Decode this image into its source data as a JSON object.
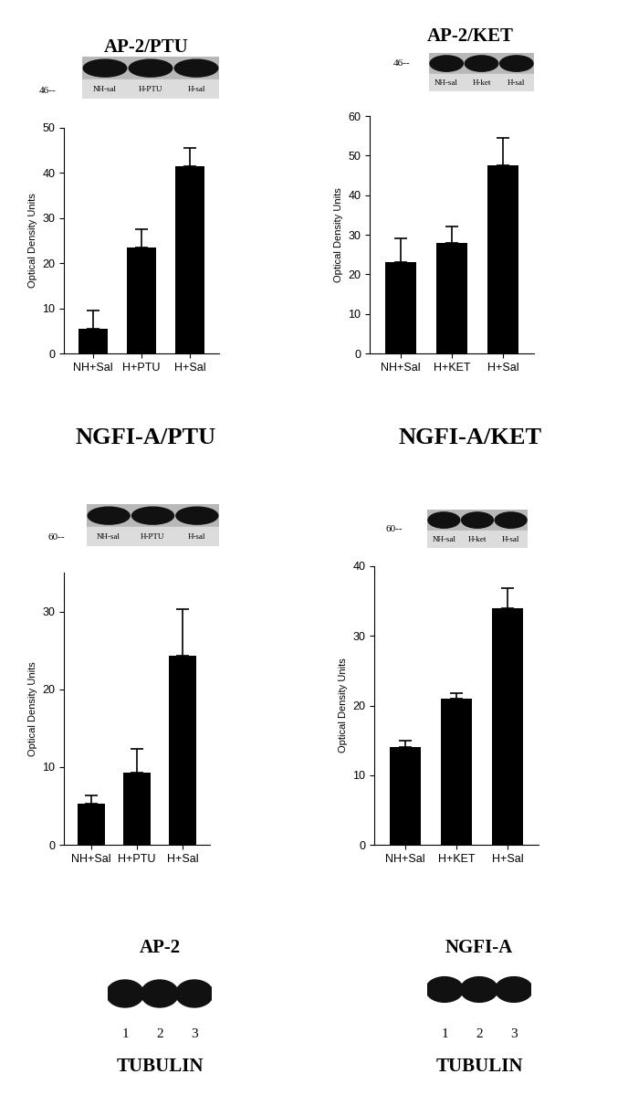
{
  "chart_data": [
    {
      "type": "bar",
      "title": "AP-2/PTU",
      "categories": [
        "NH+Sal",
        "H+PTU",
        "H+Sal"
      ],
      "values": [
        5.5,
        23.5,
        41.5
      ],
      "errors": [
        4,
        4,
        4
      ],
      "color": "#000000",
      "ylabel": "Optical Density Units",
      "ylim": [
        0,
        50
      ],
      "yticks": [
        0,
        10,
        20,
        30,
        40,
        50
      ],
      "blot": {
        "size_label": "46--",
        "lanes": [
          "NH-sal",
          "H-PTU",
          "H-sal"
        ]
      }
    },
    {
      "type": "bar",
      "title": "AP-2/KET",
      "categories": [
        "NH+Sal",
        "H+KET",
        "H+Sal"
      ],
      "values": [
        23,
        28,
        47.5
      ],
      "errors": [
        6,
        4,
        7
      ],
      "color": "#000000",
      "ylabel": "Optical Density Units",
      "ylim": [
        0,
        60
      ],
      "yticks": [
        0,
        10,
        20,
        30,
        40,
        50,
        60
      ],
      "blot": {
        "size_label": "46--",
        "lanes": [
          "NH-sal",
          "H-ket",
          "H-sal"
        ]
      }
    },
    {
      "type": "bar",
      "title": "NGFI-A/PTU",
      "categories": [
        "NH+Sal",
        "H+PTU",
        "H+Sal"
      ],
      "values": [
        5.3,
        9.3,
        24.3
      ],
      "errors": [
        1.1,
        3,
        6
      ],
      "color": "#000000",
      "ylabel": "Optical Density Units",
      "ylim": [
        0,
        35
      ],
      "yticks": [
        0,
        10,
        20,
        30
      ],
      "blot": {
        "size_label": "60--",
        "lanes": [
          "NH-sal",
          "H-PTU",
          "H-sal"
        ]
      }
    },
    {
      "type": "bar",
      "title": "NGFI-A/KET",
      "categories": [
        "NH+Sal",
        "H+KET",
        "H+Sal"
      ],
      "values": [
        14,
        21,
        34
      ],
      "errors": [
        1,
        0.8,
        2.8
      ],
      "color": "#000000",
      "ylabel": "Optical Density Units",
      "ylim": [
        0,
        40
      ],
      "yticks": [
        0,
        10,
        20,
        30,
        40
      ],
      "blot": {
        "size_label": "60--",
        "lanes": [
          "NH-sal",
          "H-ket",
          "H-sal"
        ]
      }
    }
  ],
  "tubulin": [
    {
      "title": "AP-2",
      "lanes": [
        "1",
        "2",
        "3"
      ],
      "label": "TUBULIN"
    },
    {
      "title": "NGFI-A",
      "lanes": [
        "1",
        "2",
        "3"
      ],
      "label": "TUBULIN"
    }
  ]
}
